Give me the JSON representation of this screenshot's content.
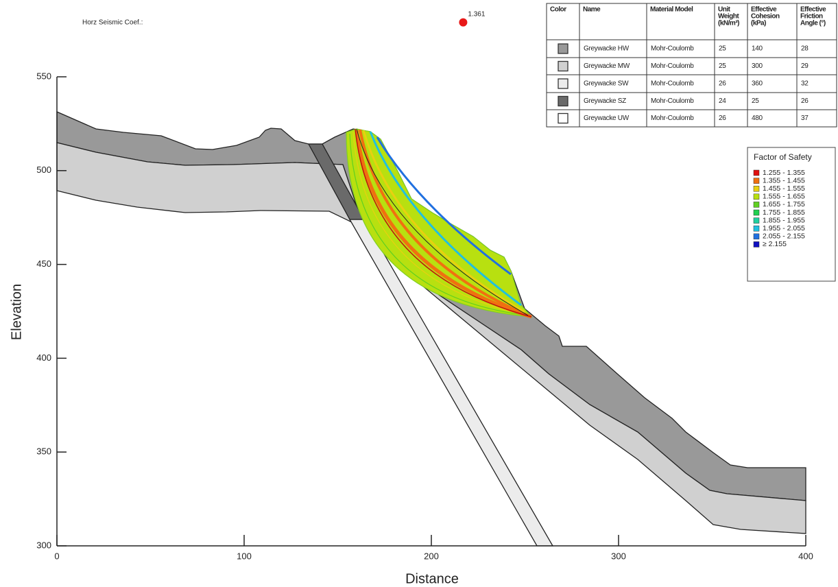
{
  "chart_data": {
    "type": "slope-stability",
    "annotation": "Horz Seismic Coef.:",
    "xlabel": "Distance",
    "ylabel": "Elevation",
    "xlim": [
      0,
      400
    ],
    "ylim": [
      300,
      550
    ],
    "xticks": [
      0,
      100,
      200,
      300,
      400
    ],
    "yticks": [
      300,
      350,
      400,
      450,
      500,
      550
    ],
    "slip_center": {
      "x": 217,
      "y": 579,
      "factor_of_safety": 1.361,
      "color": "#e81818"
    },
    "materials": {
      "headers": [
        [
          "Color"
        ],
        [
          "Name"
        ],
        [
          "Material Model"
        ],
        [
          "Unit",
          "Weight",
          "(kN/m³)"
        ],
        [
          "Effective",
          "Cohesion",
          "(kPa)"
        ],
        [
          "Effective",
          "Friction",
          "Angle (°)"
        ]
      ],
      "rows": [
        {
          "color": "#999999",
          "cells": [
            "Greywacke HW",
            "Mohr-Coulomb",
            25,
            140,
            28
          ]
        },
        {
          "color": "#d0d0d0",
          "cells": [
            "Greywacke MW",
            "Mohr-Coulomb",
            25,
            300,
            29
          ]
        },
        {
          "color": "#ececec",
          "cells": [
            "Greywacke SW",
            "Mohr-Coulomb",
            26,
            360,
            32
          ]
        },
        {
          "color": "#6a6a6a",
          "cells": [
            "Greywacke SZ",
            "Mohr-Coulomb",
            24,
            25,
            26
          ]
        },
        {
          "color": "#ffffff",
          "cells": [
            "Greywacke UW",
            "Mohr-Coulomb",
            26,
            480,
            37
          ]
        }
      ]
    },
    "fos_legend": {
      "title": "Factor of Safety",
      "entries": [
        {
          "label": "1.255 - 1.355",
          "color": "#e01010"
        },
        {
          "label": "1.355 - 1.455",
          "color": "#f07010"
        },
        {
          "label": "1.455 - 1.555",
          "color": "#e8d010"
        },
        {
          "label": "1.555 - 1.655",
          "color": "#b8e010"
        },
        {
          "label": "1.655 - 1.755",
          "color": "#60d020"
        },
        {
          "label": "1.755 - 1.855",
          "color": "#20d050"
        },
        {
          "label": "1.855 - 1.955",
          "color": "#20d0a0"
        },
        {
          "label": "1.955 - 2.055",
          "color": "#20c0e0"
        },
        {
          "label": "2.055 - 2.155",
          "color": "#2070e0"
        },
        {
          "label": "≥ 2.155",
          "color": "#1010c0"
        }
      ]
    }
  }
}
